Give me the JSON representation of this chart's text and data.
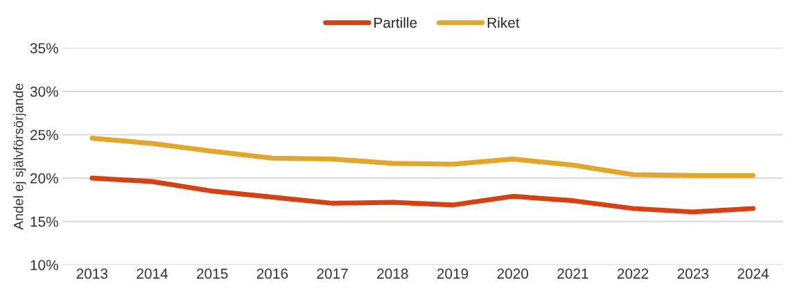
{
  "chart_data": {
    "type": "line",
    "ylabel": "Andel ej självförsörjande",
    "categories": [
      "2013",
      "2014",
      "2015",
      "2016",
      "2017",
      "2018",
      "2019",
      "2020",
      "2021",
      "2022",
      "2023",
      "2024"
    ],
    "series": [
      {
        "name": "Partille",
        "color": "#d9400f",
        "values": [
          20.0,
          19.6,
          18.5,
          17.8,
          17.1,
          17.2,
          16.9,
          17.9,
          17.4,
          16.5,
          16.1,
          16.5
        ]
      },
      {
        "name": "Riket",
        "color": "#e3a626",
        "values": [
          24.6,
          24.0,
          23.1,
          22.3,
          22.2,
          21.7,
          21.6,
          22.2,
          21.5,
          20.4,
          20.3,
          20.3
        ]
      }
    ],
    "ylim": [
      10,
      35
    ],
    "yticks": [
      {
        "value": 10,
        "label": "10%"
      },
      {
        "value": 15,
        "label": "15%"
      },
      {
        "value": 20,
        "label": "20%"
      },
      {
        "value": 25,
        "label": "25%"
      },
      {
        "value": 30,
        "label": "30%"
      },
      {
        "value": 35,
        "label": "35%"
      }
    ],
    "grid": "y",
    "legend": "top",
    "marker": "none",
    "line_style": "solid"
  }
}
